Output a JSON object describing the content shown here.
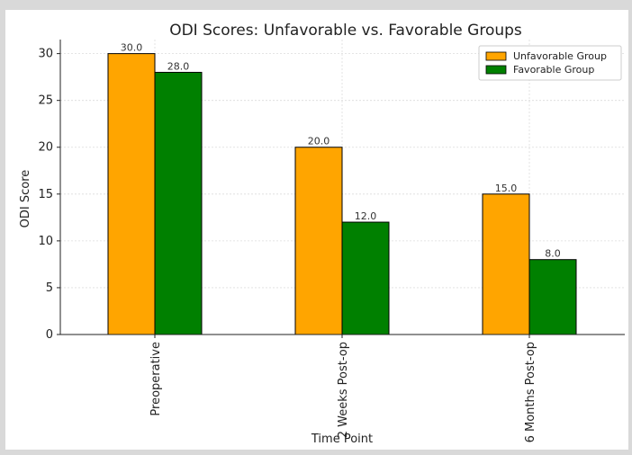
{
  "chart_data": {
    "type": "bar",
    "title": "ODI Scores: Unfavorable vs. Favorable Groups",
    "xlabel": "Time Point",
    "ylabel": "ODI Score",
    "categories": [
      "Preoperative",
      "2 Weeks Post-op",
      "6 Months Post-op"
    ],
    "series": [
      {
        "name": "Unfavorable Group",
        "values": [
          30.0,
          20.0,
          15.0
        ],
        "color": "#FFA500"
      },
      {
        "name": "Favorable Group",
        "values": [
          28.0,
          12.0,
          8.0
        ],
        "color": "#008000"
      }
    ],
    "data_labels": [
      [
        "30.0",
        "20.0",
        "15.0"
      ],
      [
        "28.0",
        "12.0",
        "8.0"
      ]
    ],
    "ylim": [
      0,
      31.5
    ],
    "yticks": [
      0,
      5,
      10,
      15,
      20,
      25,
      30
    ],
    "grid": true,
    "legend_position": "top-right",
    "x_tick_rotation": "vertical"
  }
}
